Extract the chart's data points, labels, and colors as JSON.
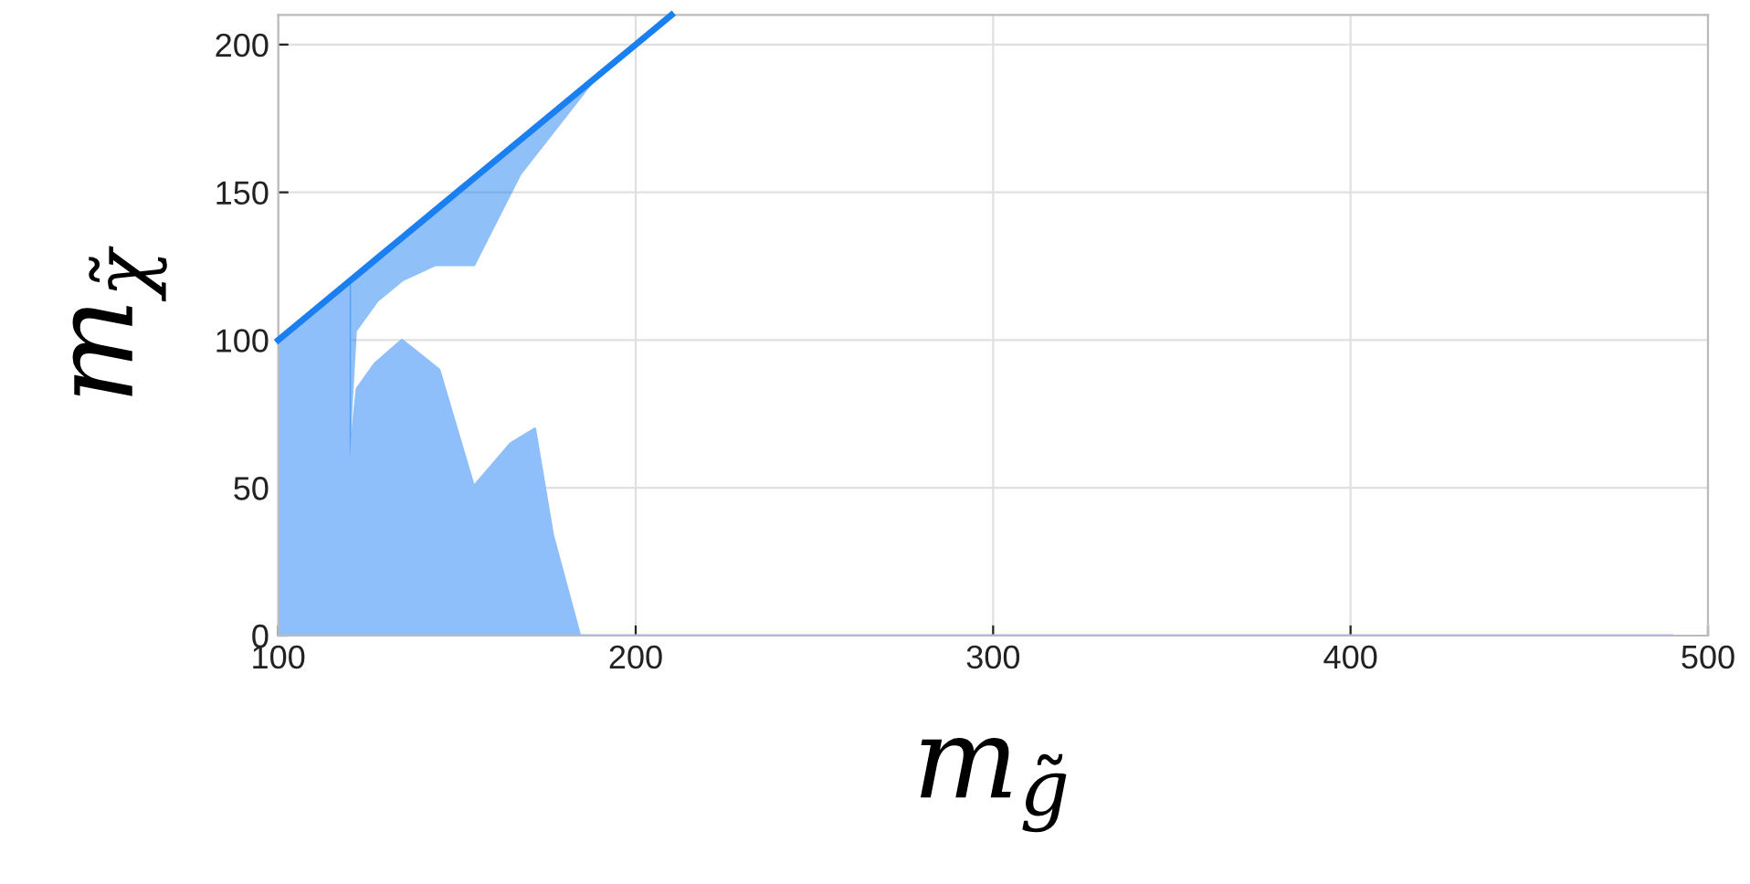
{
  "chart_data": {
    "type": "area",
    "xlabel": "m$_{g̃}$",
    "ylabel": "m$_{χ̃}$",
    "xlim": [
      100,
      500
    ],
    "xticks": [
      100,
      200,
      300,
      400,
      500
    ],
    "ylim": [
      0,
      210
    ],
    "yticks": [
      0,
      50,
      100,
      150,
      200
    ],
    "grid": true,
    "series": [
      {
        "color": "#8fbffa",
        "x": [
          100,
          120,
          120,
          122,
          127,
          134.6,
          145,
          154.7,
          165,
          171.8,
          176.8,
          184.4,
          490
        ],
        "values": [
          100,
          120,
          60,
          83.5,
          92,
          100,
          90,
          50.5,
          65,
          70,
          34,
          0,
          0
        ]
      },
      {
        "type": "line",
        "color": "#1a7ff0",
        "x": [
          100,
          120,
          122,
          128,
          135,
          144,
          155,
          168,
          190,
          200,
          210
        ],
        "values": [
          100,
          120,
          122,
          128,
          135,
          144,
          155,
          168,
          190,
          200,
          210
        ],
        "lower": [
          null,
          60,
          103,
          113,
          120,
          125,
          125,
          156,
          190,
          200,
          null
        ],
        "upper": [
          null,
          120,
          122,
          128,
          135,
          144,
          155,
          168,
          190,
          200,
          null
        ]
      }
    ]
  }
}
